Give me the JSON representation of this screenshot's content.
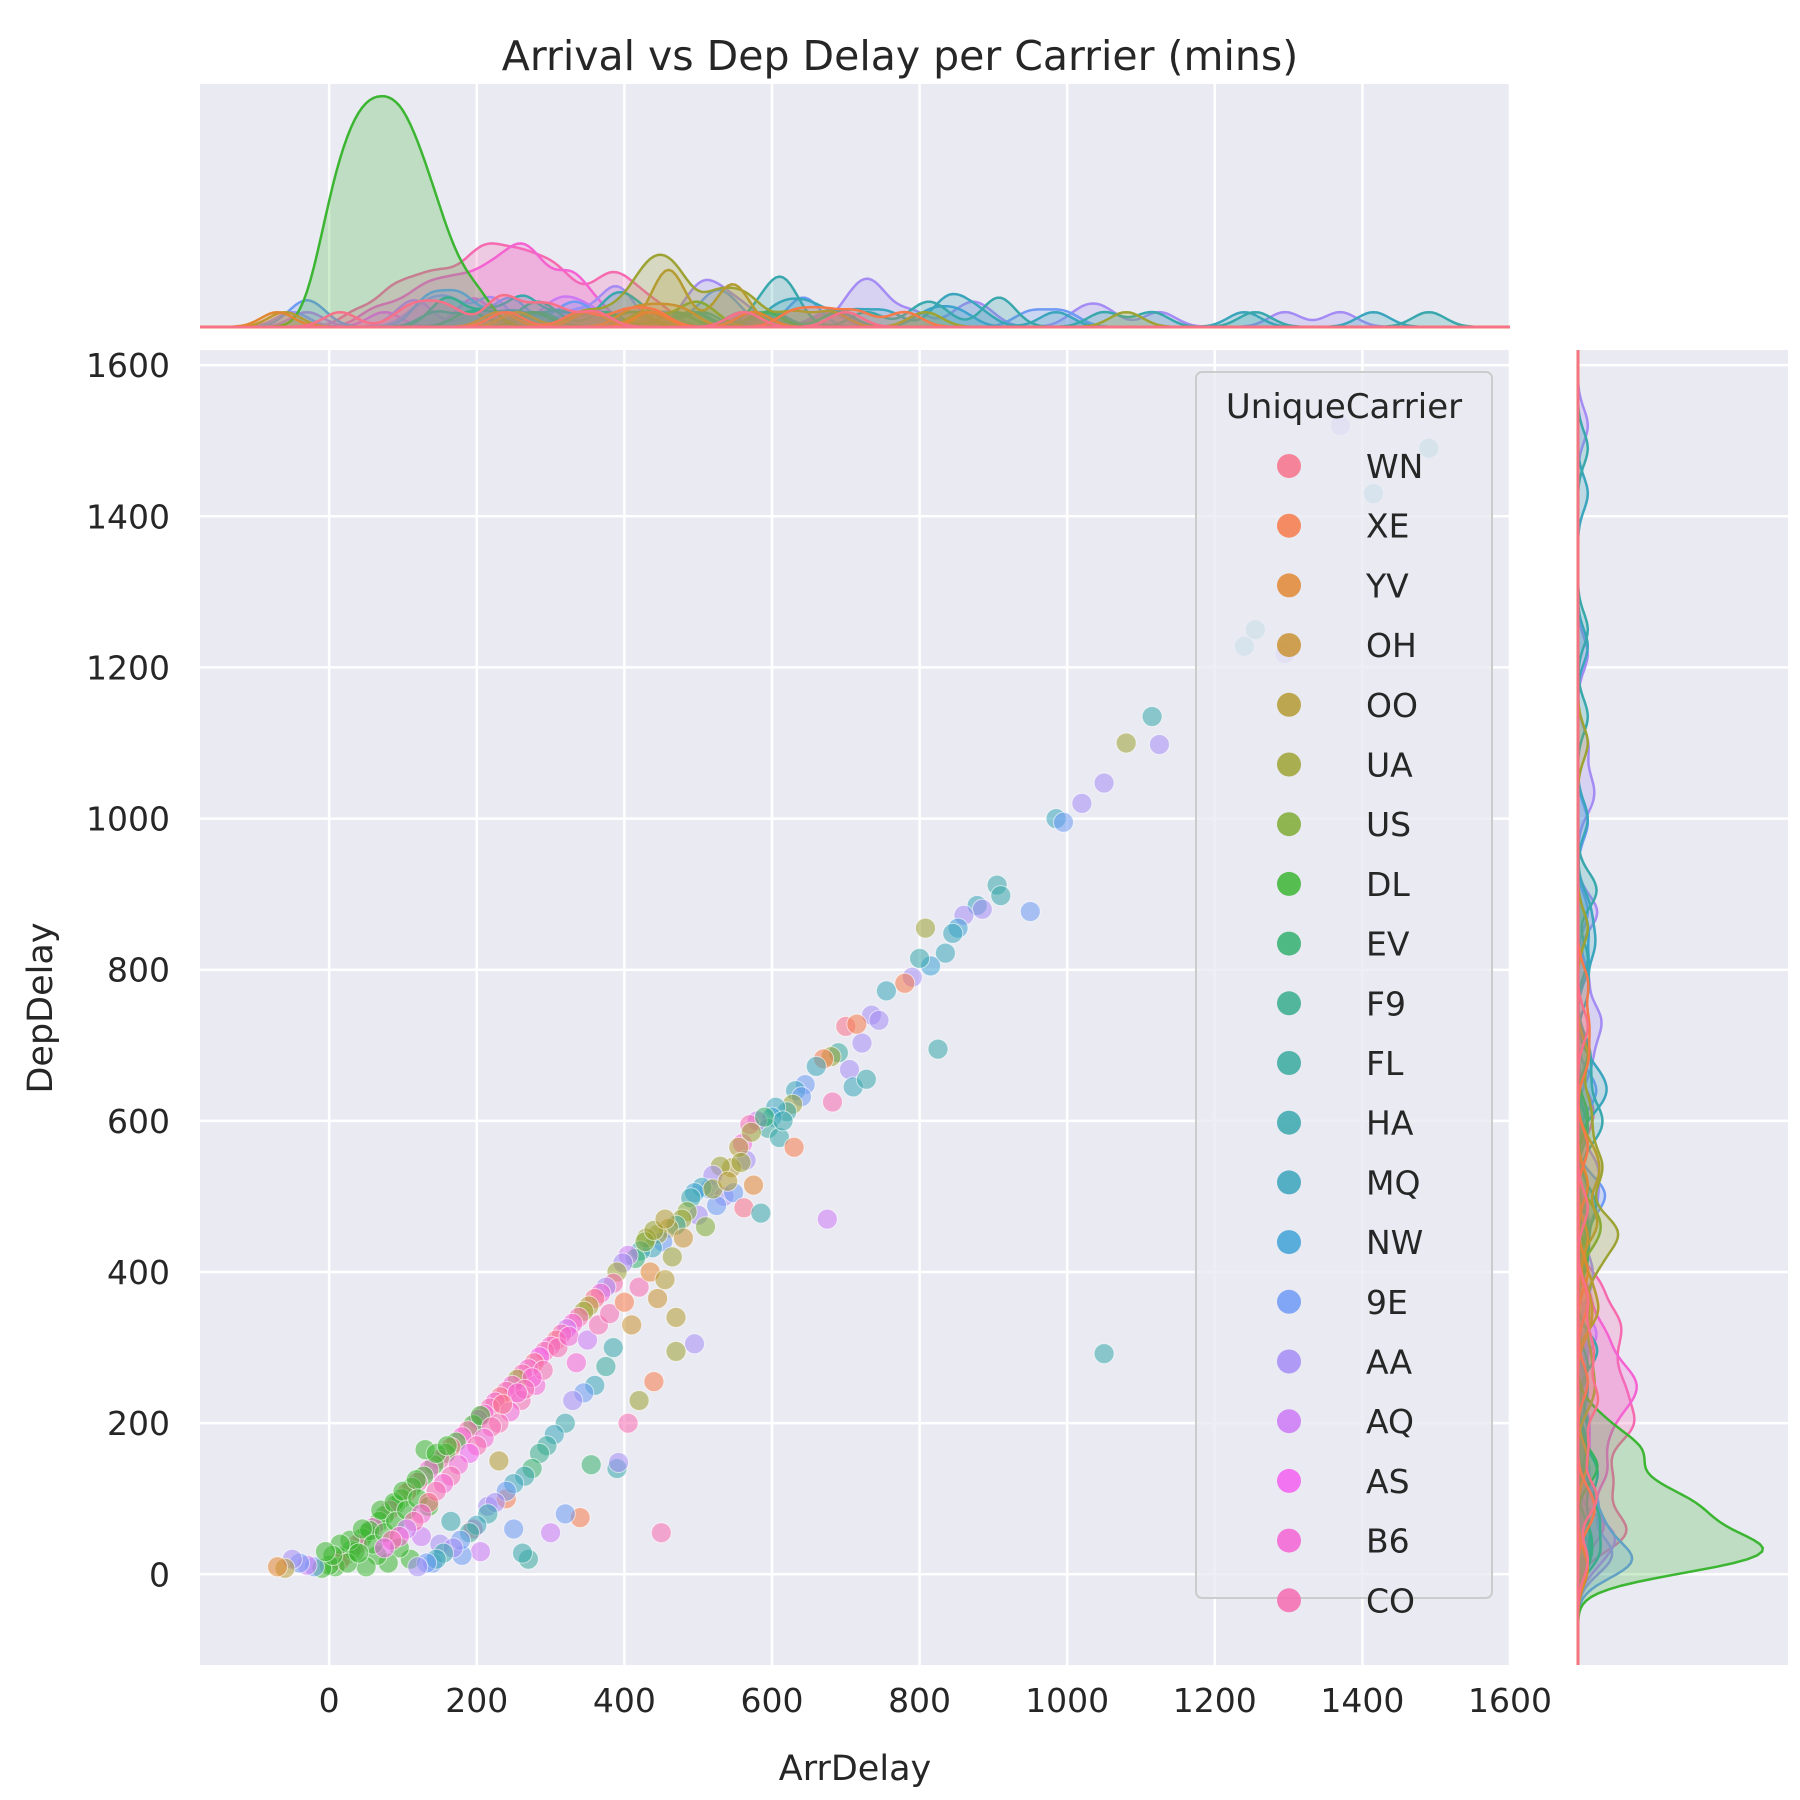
{
  "chart_data": {
    "type": "scatter",
    "title": "Arrival vs Dep Delay per Carrier (mins)",
    "xlabel": "ArrDelay",
    "ylabel": "DepDelay",
    "xlim": [
      -175,
      1600
    ],
    "ylim": [
      -120,
      1620
    ],
    "xticks": [
      "0",
      "200",
      "400",
      "600",
      "800",
      "1000",
      "1200",
      "1400",
      "1600"
    ],
    "yticks": [
      "0",
      "200",
      "400",
      "600",
      "800",
      "1000",
      "1200",
      "1400",
      "1600"
    ],
    "grid": true,
    "marginals": "kde",
    "legend": {
      "title": "UniqueCarrier",
      "placement": "top-right"
    },
    "carriers": [
      {
        "name": "WN",
        "color": "#f77189"
      },
      {
        "name": "XE",
        "color": "#f67a49"
      },
      {
        "name": "YV",
        "color": "#e18731"
      },
      {
        "name": "OH",
        "color": "#c99232"
      },
      {
        "name": "OO",
        "color": "#b49b32"
      },
      {
        "name": "UA",
        "color": "#9da333"
      },
      {
        "name": "US",
        "color": "#7fac33"
      },
      {
        "name": "DL",
        "color": "#3cb632"
      },
      {
        "name": "EV",
        "color": "#34b06e"
      },
      {
        "name": "F9",
        "color": "#36ad8b"
      },
      {
        "name": "FL",
        "color": "#37aa9d"
      },
      {
        "name": "HA",
        "color": "#38a8ac"
      },
      {
        "name": "MQ",
        "color": "#3aa5bc"
      },
      {
        "name": "NW",
        "color": "#3ea2d6"
      },
      {
        "name": "9E",
        "color": "#6e9af4"
      },
      {
        "name": "AA",
        "color": "#a48cf4"
      },
      {
        "name": "AQ",
        "color": "#cc79f4"
      },
      {
        "name": "AS",
        "color": "#f45ff0"
      },
      {
        "name": "B6",
        "color": "#f563d3"
      },
      {
        "name": "CO",
        "color": "#f66bb0"
      }
    ],
    "points": [
      [
        1370,
        1520,
        "AA"
      ],
      [
        1490,
        1490,
        "HA"
      ],
      [
        1415,
        1430,
        "MQ"
      ],
      [
        1255,
        1250,
        "HA"
      ],
      [
        1240,
        1228,
        "MQ"
      ],
      [
        1295,
        1218,
        "AA"
      ],
      [
        1115,
        1135,
        "HA"
      ],
      [
        1125,
        1098,
        "AA"
      ],
      [
        1080,
        1100,
        "UA"
      ],
      [
        1050,
        1047,
        "AA"
      ],
      [
        1020,
        1020,
        "AA"
      ],
      [
        985,
        1000,
        "MQ"
      ],
      [
        995,
        995,
        "9E"
      ],
      [
        950,
        877,
        "9E"
      ],
      [
        905,
        912,
        "HA"
      ],
      [
        910,
        898,
        "HA"
      ],
      [
        878,
        885,
        "MQ"
      ],
      [
        885,
        880,
        "AA"
      ],
      [
        860,
        872,
        "AA"
      ],
      [
        852,
        855,
        "NW"
      ],
      [
        845,
        848,
        "MQ"
      ],
      [
        835,
        822,
        "MQ"
      ],
      [
        815,
        805,
        "NW"
      ],
      [
        800,
        815,
        "HA"
      ],
      [
        808,
        855,
        "UA"
      ],
      [
        790,
        790,
        "AA"
      ],
      [
        780,
        782,
        "XE"
      ],
      [
        755,
        772,
        "MQ"
      ],
      [
        825,
        695,
        "HA"
      ],
      [
        735,
        740,
        "AA"
      ],
      [
        745,
        733,
        "AA"
      ],
      [
        722,
        703,
        "AA"
      ],
      [
        700,
        725,
        "WN"
      ],
      [
        715,
        728,
        "XE"
      ],
      [
        705,
        668,
        "AA"
      ],
      [
        690,
        690,
        "FL"
      ],
      [
        680,
        685,
        "UA"
      ],
      [
        670,
        682,
        "XE"
      ],
      [
        660,
        672,
        "MQ"
      ],
      [
        682,
        625,
        "CO"
      ],
      [
        710,
        645,
        "MQ"
      ],
      [
        728,
        655,
        "HA"
      ],
      [
        645,
        648,
        "9E"
      ],
      [
        632,
        640,
        "MQ"
      ],
      [
        640,
        632,
        "9E"
      ],
      [
        628,
        622,
        "UA"
      ],
      [
        620,
        612,
        "HA"
      ],
      [
        605,
        618,
        "MQ"
      ],
      [
        600,
        605,
        "NW"
      ],
      [
        595,
        590,
        "FL"
      ],
      [
        610,
        578,
        "HA"
      ],
      [
        630,
        565,
        "XE"
      ],
      [
        580,
        600,
        "AQ"
      ],
      [
        570,
        595,
        "CO"
      ],
      [
        560,
        570,
        "B6"
      ],
      [
        572,
        585,
        "UA"
      ],
      [
        565,
        548,
        "AA"
      ],
      [
        555,
        565,
        "OO"
      ],
      [
        545,
        538,
        "OO"
      ],
      [
        530,
        540,
        "UA"
      ],
      [
        520,
        528,
        "AA"
      ],
      [
        515,
        510,
        "9E"
      ],
      [
        505,
        512,
        "MQ"
      ],
      [
        495,
        505,
        "NW"
      ],
      [
        490,
        498,
        "HA"
      ],
      [
        535,
        500,
        "AA"
      ],
      [
        525,
        488,
        "9E"
      ],
      [
        548,
        505,
        "9E"
      ],
      [
        562,
        485,
        "WN"
      ],
      [
        585,
        478,
        "HA"
      ],
      [
        575,
        515,
        "YV"
      ],
      [
        675,
        470,
        "AQ"
      ],
      [
        500,
        475,
        "AA"
      ],
      [
        485,
        480,
        "US"
      ],
      [
        478,
        470,
        "UA"
      ],
      [
        470,
        462,
        "FL"
      ],
      [
        460,
        458,
        "OO"
      ],
      [
        452,
        440,
        "9E"
      ],
      [
        445,
        450,
        "UA"
      ],
      [
        438,
        432,
        "MQ"
      ],
      [
        430,
        445,
        "UA"
      ],
      [
        422,
        428,
        "HA"
      ],
      [
        415,
        418,
        "EV"
      ],
      [
        405,
        422,
        "AQ"
      ],
      [
        398,
        412,
        "AA"
      ],
      [
        390,
        400,
        "UA"
      ],
      [
        385,
        385,
        "CO"
      ],
      [
        375,
        380,
        "AA"
      ],
      [
        368,
        372,
        "B6"
      ],
      [
        360,
        365,
        "WN"
      ],
      [
        352,
        355,
        "OO"
      ],
      [
        345,
        348,
        "UA"
      ],
      [
        338,
        340,
        "CO"
      ],
      [
        330,
        332,
        "B6"
      ],
      [
        322,
        325,
        "AQ"
      ],
      [
        315,
        318,
        "CO"
      ],
      [
        308,
        310,
        "WN"
      ],
      [
        300,
        302,
        "B6"
      ],
      [
        292,
        295,
        "CO"
      ],
      [
        285,
        288,
        "AS"
      ],
      [
        278,
        280,
        "WN"
      ],
      [
        270,
        272,
        "B6"
      ],
      [
        262,
        265,
        "CO"
      ],
      [
        255,
        258,
        "UA"
      ],
      [
        248,
        250,
        "B6"
      ],
      [
        240,
        242,
        "CO"
      ],
      [
        232,
        235,
        "WN"
      ],
      [
        225,
        228,
        "B6"
      ],
      [
        218,
        220,
        "CO"
      ],
      [
        210,
        212,
        "B6"
      ],
      [
        202,
        205,
        "AS"
      ],
      [
        195,
        198,
        "DL"
      ],
      [
        188,
        190,
        "CO"
      ],
      [
        180,
        182,
        "B6"
      ],
      [
        172,
        175,
        "DL"
      ],
      [
        165,
        168,
        "WN"
      ],
      [
        158,
        160,
        "DL"
      ],
      [
        150,
        152,
        "CO"
      ],
      [
        142,
        145,
        "DL"
      ],
      [
        135,
        138,
        "B6"
      ],
      [
        128,
        130,
        "DL"
      ],
      [
        120,
        122,
        "CO"
      ],
      [
        112,
        115,
        "DL"
      ],
      [
        105,
        108,
        "WN"
      ],
      [
        98,
        100,
        "DL"
      ],
      [
        90,
        92,
        "DL"
      ],
      [
        82,
        85,
        "CO"
      ],
      [
        75,
        78,
        "DL"
      ],
      [
        68,
        70,
        "DL"
      ],
      [
        60,
        62,
        "B6"
      ],
      [
        52,
        55,
        "DL"
      ],
      [
        45,
        48,
        "DL"
      ],
      [
        38,
        40,
        "CO"
      ],
      [
        30,
        32,
        "DL"
      ],
      [
        22,
        25,
        "DL"
      ],
      [
        15,
        18,
        "WN"
      ],
      [
        8,
        10,
        "DL"
      ],
      [
        0,
        12,
        "DL"
      ],
      [
        -10,
        8,
        "DL"
      ],
      [
        -20,
        10,
        "9E"
      ],
      [
        -30,
        12,
        "AQ"
      ],
      [
        -40,
        15,
        "9E"
      ],
      [
        -50,
        20,
        "AA"
      ],
      [
        -60,
        8,
        "OO"
      ],
      [
        -70,
        10,
        "YV"
      ],
      [
        450,
        55,
        "CO"
      ],
      [
        1050,
        292,
        "HA"
      ],
      [
        495,
        305,
        "AA"
      ],
      [
        470,
        295,
        "UA"
      ],
      [
        470,
        340,
        "OO"
      ],
      [
        440,
        255,
        "XE"
      ],
      [
        420,
        230,
        "UA"
      ],
      [
        405,
        200,
        "CO"
      ],
      [
        390,
        140,
        "HA"
      ],
      [
        392,
        148,
        "AA"
      ],
      [
        355,
        145,
        "EV"
      ],
      [
        340,
        75,
        "XE"
      ],
      [
        320,
        80,
        "9E"
      ],
      [
        300,
        55,
        "AQ"
      ],
      [
        270,
        20,
        "FL"
      ],
      [
        262,
        28,
        "HA"
      ],
      [
        250,
        60,
        "9E"
      ],
      [
        240,
        100,
        "XE"
      ],
      [
        230,
        150,
        "OO"
      ],
      [
        215,
        90,
        "AA"
      ],
      [
        205,
        30,
        "AQ"
      ],
      [
        195,
        60,
        "CO"
      ],
      [
        180,
        25,
        "9E"
      ],
      [
        165,
        70,
        "HA"
      ],
      [
        150,
        40,
        "AA"
      ],
      [
        140,
        15,
        "9E"
      ],
      [
        125,
        50,
        "AQ"
      ],
      [
        110,
        20,
        "DL"
      ],
      [
        95,
        35,
        "DL"
      ],
      [
        80,
        15,
        "DL"
      ],
      [
        65,
        25,
        "DL"
      ],
      [
        50,
        10,
        "DL"
      ],
      [
        35,
        30,
        "DL"
      ],
      [
        28,
        45,
        "DL"
      ],
      [
        55,
        58,
        "DL"
      ],
      [
        70,
        85,
        "DL"
      ],
      [
        88,
        95,
        "DL"
      ],
      [
        100,
        110,
        "DL"
      ],
      [
        118,
        125,
        "DL"
      ],
      [
        130,
        165,
        "DL"
      ],
      [
        145,
        160,
        "DL"
      ],
      [
        160,
        170,
        "DL"
      ],
      [
        205,
        210,
        "DL"
      ],
      [
        45,
        60,
        "DL"
      ],
      [
        60,
        40,
        "DL"
      ],
      [
        75,
        55,
        "DL"
      ],
      [
        90,
        70,
        "DL"
      ],
      [
        105,
        85,
        "DL"
      ],
      [
        120,
        100,
        "DL"
      ],
      [
        135,
        90,
        "DL"
      ],
      [
        25,
        15,
        "DL"
      ],
      [
        40,
        28,
        "DL"
      ],
      [
        15,
        40,
        "DL"
      ],
      [
        5,
        25,
        "DL"
      ],
      [
        -5,
        30,
        "DL"
      ],
      [
        310,
        300,
        "CO"
      ],
      [
        325,
        315,
        "B6"
      ],
      [
        335,
        280,
        "B6"
      ],
      [
        350,
        310,
        "AQ"
      ],
      [
        365,
        330,
        "CO"
      ],
      [
        380,
        345,
        "CO"
      ],
      [
        280,
        250,
        "B6"
      ],
      [
        290,
        270,
        "CO"
      ],
      [
        260,
        230,
        "CO"
      ],
      [
        245,
        215,
        "B6"
      ],
      [
        230,
        200,
        "CO"
      ],
      [
        275,
        260,
        "B6"
      ],
      [
        265,
        245,
        "CO"
      ],
      [
        255,
        240,
        "B6"
      ],
      [
        235,
        225,
        "WN"
      ],
      [
        220,
        195,
        "CO"
      ],
      [
        210,
        180,
        "B6"
      ],
      [
        200,
        170,
        "CO"
      ],
      [
        190,
        160,
        "AS"
      ],
      [
        175,
        145,
        "B6"
      ],
      [
        165,
        130,
        "CO"
      ],
      [
        155,
        120,
        "B6"
      ],
      [
        145,
        110,
        "CO"
      ],
      [
        135,
        95,
        "WN"
      ],
      [
        125,
        80,
        "B6"
      ],
      [
        115,
        70,
        "CO"
      ],
      [
        105,
        60,
        "AQ"
      ],
      [
        95,
        50,
        "B6"
      ],
      [
        85,
        45,
        "CO"
      ],
      [
        75,
        35,
        "AS"
      ],
      [
        420,
        380,
        "CO"
      ],
      [
        435,
        400,
        "YV"
      ],
      [
        445,
        365,
        "OH"
      ],
      [
        455,
        390,
        "OO"
      ],
      [
        465,
        420,
        "UA"
      ],
      [
        400,
        360,
        "XE"
      ],
      [
        410,
        330,
        "OH"
      ],
      [
        385,
        300,
        "HA"
      ],
      [
        375,
        275,
        "FL"
      ],
      [
        360,
        250,
        "MQ"
      ],
      [
        345,
        240,
        "9E"
      ],
      [
        330,
        230,
        "AA"
      ],
      [
        320,
        200,
        "HA"
      ],
      [
        305,
        185,
        "MQ"
      ],
      [
        295,
        170,
        "FL"
      ],
      [
        285,
        160,
        "F9"
      ],
      [
        275,
        140,
        "EV"
      ],
      [
        265,
        130,
        "HA"
      ],
      [
        250,
        120,
        "MQ"
      ],
      [
        240,
        110,
        "9E"
      ],
      [
        225,
        95,
        "AA"
      ],
      [
        215,
        80,
        "HA"
      ],
      [
        200,
        65,
        "MQ"
      ],
      [
        190,
        55,
        "FL"
      ],
      [
        178,
        45,
        "9E"
      ],
      [
        168,
        35,
        "AA"
      ],
      [
        155,
        28,
        "HA"
      ],
      [
        145,
        20,
        "MQ"
      ],
      [
        132,
        15,
        "9E"
      ],
      [
        120,
        10,
        "AA"
      ],
      [
        428,
        440,
        "US"
      ],
      [
        440,
        455,
        "UA"
      ],
      [
        455,
        470,
        "OO"
      ],
      [
        480,
        445,
        "OH"
      ],
      [
        510,
        460,
        "US"
      ],
      [
        520,
        510,
        "UA"
      ],
      [
        540,
        520,
        "OO"
      ],
      [
        558,
        545,
        "UA"
      ],
      [
        590,
        605,
        "EV"
      ],
      [
        615,
        600,
        "HA"
      ]
    ]
  }
}
